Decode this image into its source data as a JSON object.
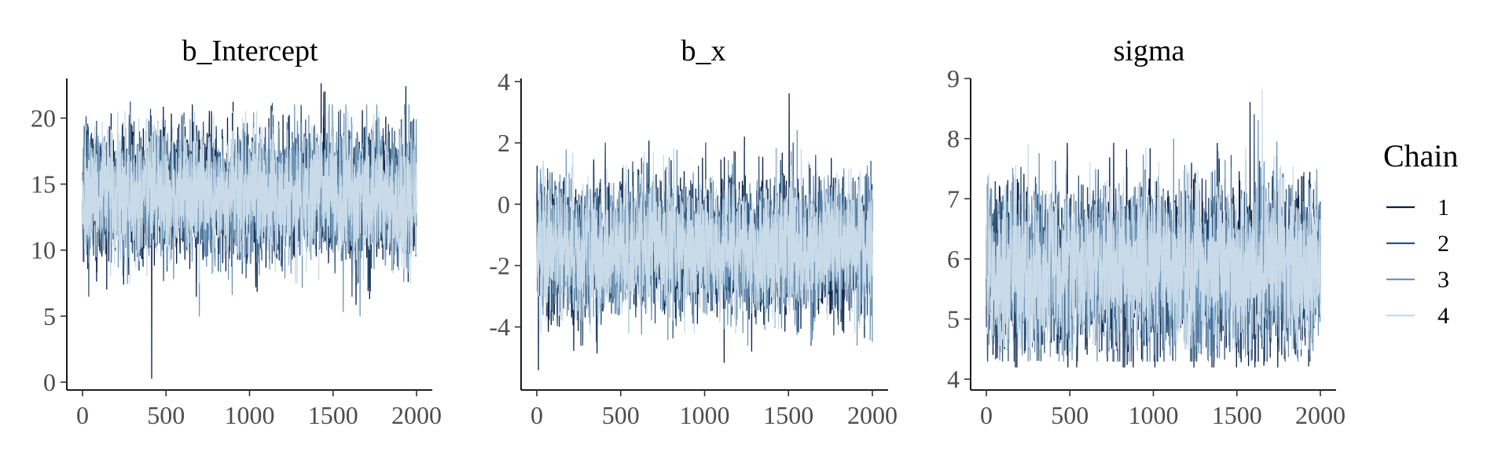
{
  "chart_data": [
    {
      "type": "line",
      "title": "b_Intercept",
      "xlabel": "",
      "ylabel": "",
      "xlim": [
        0,
        2000
      ],
      "ylim": [
        0,
        23
      ],
      "xticks": [
        0,
        500,
        1000,
        1500,
        2000
      ],
      "xtick_labels": [
        "0",
        "500",
        "1000",
        "1500",
        "2000"
      ],
      "yticks": [
        0,
        5,
        10,
        15,
        20
      ],
      "ytick_labels": [
        "0",
        "5",
        "10",
        "15",
        "20"
      ],
      "grid": false,
      "n_iterations": 2000,
      "series_summary": [
        {
          "chain": "1",
          "center": 14.2,
          "spread": 2.4,
          "min": 0.3,
          "max": 22.6
        },
        {
          "chain": "2",
          "center": 14.2,
          "spread": 2.4,
          "min": 6.5,
          "max": 22.0
        },
        {
          "chain": "3",
          "center": 14.2,
          "spread": 2.4,
          "min": 5.0,
          "max": 21.0
        },
        {
          "chain": "4",
          "center": 14.2,
          "spread": 2.4,
          "min": 7.5,
          "max": 20.5
        }
      ]
    },
    {
      "type": "line",
      "title": "b_x",
      "xlabel": "",
      "ylabel": "",
      "xlim": [
        0,
        2000
      ],
      "ylim": [
        -5.8,
        4.1
      ],
      "xticks": [
        0,
        500,
        1000,
        1500,
        2000
      ],
      "xtick_labels": [
        "0",
        "500",
        "1000",
        "1500",
        "2000"
      ],
      "yticks": [
        -4,
        -2,
        0,
        2,
        4
      ],
      "ytick_labels": [
        "-4",
        "-2",
        "0",
        "2",
        "4"
      ],
      "grid": false,
      "n_iterations": 2000,
      "series_summary": [
        {
          "chain": "1",
          "center": -1.4,
          "spread": 1.05,
          "min": -5.4,
          "max": 3.6
        },
        {
          "chain": "2",
          "center": -1.4,
          "spread": 1.05,
          "min": -4.6,
          "max": 2.0
        },
        {
          "chain": "3",
          "center": -1.4,
          "spread": 1.05,
          "min": -4.6,
          "max": 2.4
        },
        {
          "chain": "4",
          "center": -1.4,
          "spread": 1.05,
          "min": -4.2,
          "max": 1.8
        }
      ]
    },
    {
      "type": "line",
      "title": "sigma",
      "xlabel": "",
      "ylabel": "",
      "xlim": [
        0,
        2000
      ],
      "ylim": [
        3.95,
        9.0
      ],
      "xticks": [
        0,
        500,
        1000,
        1500,
        2000
      ],
      "xtick_labels": [
        "0",
        "500",
        "1000",
        "1500",
        "2000"
      ],
      "yticks": [
        4,
        5,
        6,
        7,
        8,
        9
      ],
      "ytick_labels": [
        "4",
        "5",
        "6",
        "7",
        "8",
        "9"
      ],
      "grid": false,
      "n_iterations": 2000,
      "series_summary": [
        {
          "chain": "1",
          "center": 5.85,
          "spread": 0.65,
          "min": 4.2,
          "max": 8.6
        },
        {
          "chain": "2",
          "center": 5.85,
          "spread": 0.65,
          "min": 4.3,
          "max": 8.4
        },
        {
          "chain": "3",
          "center": 5.85,
          "spread": 0.65,
          "min": 4.3,
          "max": 8.3
        },
        {
          "chain": "4",
          "center": 5.85,
          "spread": 0.65,
          "min": 4.5,
          "max": 8.8
        }
      ]
    }
  ],
  "legend": {
    "title": "Chain",
    "position": "right",
    "entries": [
      {
        "label": "1",
        "color": "#0b1f45"
      },
      {
        "label": "2",
        "color": "#2e5278"
      },
      {
        "label": "3",
        "color": "#6f96b8"
      },
      {
        "label": "4",
        "color": "#c9dbe9"
      }
    ]
  }
}
